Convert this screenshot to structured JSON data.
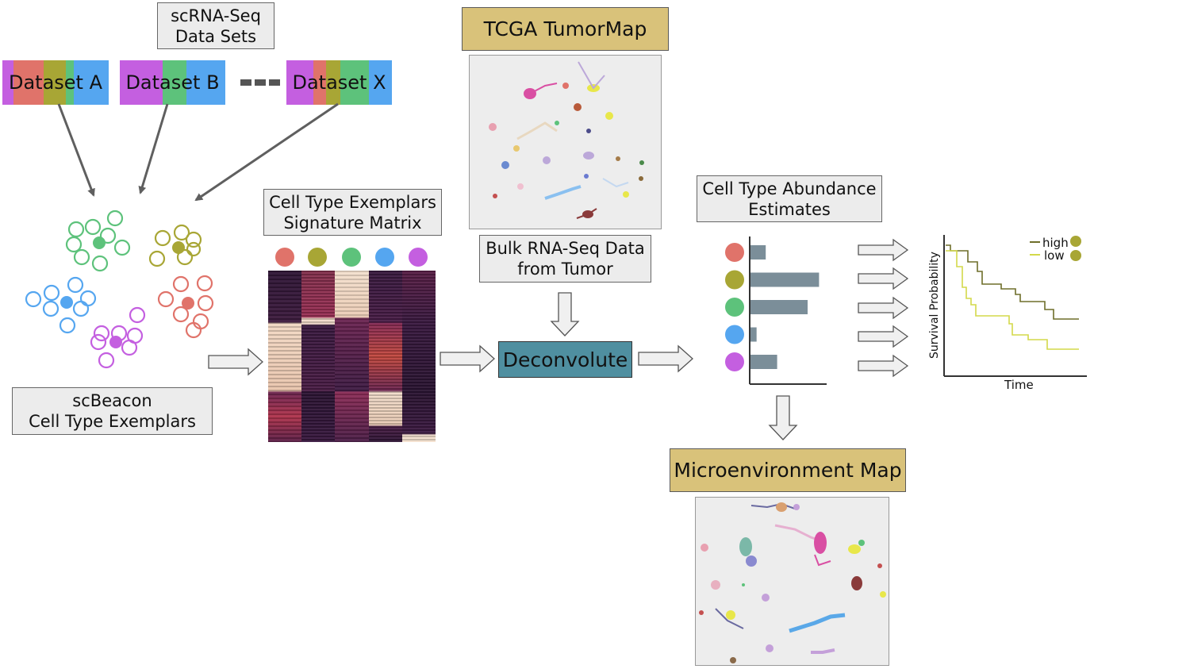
{
  "title_datasets": "scRNA-Seq\nData Sets",
  "datasets": [
    {
      "label": "Dataset A",
      "colors": [
        "#c45fe0",
        "#e0736a",
        "#a8a635",
        "#5dc27b",
        "#55a6f0"
      ]
    },
    {
      "label": "Dataset B",
      "colors": [
        "#c45fe0",
        "#5dc27b",
        "#55a6f0"
      ]
    },
    {
      "label": "Dataset X",
      "colors": [
        "#c45fe0",
        "#e0736a",
        "#a8a635",
        "#5dc27b",
        "#55a6f0"
      ]
    }
  ],
  "exemplars_label": "scBeacon\nCell Type Exemplars",
  "signature_label": "Cell Type Exemplars\nSignature Matrix",
  "tumormap_label": "TCGA TumorMap",
  "bulk_label": "Bulk RNA-Seq Data\nfrom Tumor",
  "deconvolute_label": "Deconvolute",
  "abundance_label": "Cell Type Abundance\nEstimates",
  "microenv_label": "Microenvironment Map",
  "cell_type_colors": [
    "#e0736a",
    "#a8a635",
    "#5dc27b",
    "#55a6f0",
    "#c45fe0"
  ],
  "abundance_chart": {
    "type": "bar",
    "values": [
      0.2,
      0.9,
      0.75,
      0.08,
      0.35
    ]
  },
  "survival": {
    "ylabel": "Survival Probability",
    "xlabel": "Time",
    "legend": [
      {
        "name": "high",
        "color": "#6e6e2a",
        "dot": "#a8a635"
      },
      {
        "name": "low",
        "color": "#d3d94a",
        "dot": "#a8a635"
      }
    ]
  },
  "colors": {
    "arrow_gray": "#5f5f5f",
    "block_arrow_fill": "#f0f0f0",
    "bar_fill": "#7b8e99",
    "panel_bg": "#ededed"
  }
}
